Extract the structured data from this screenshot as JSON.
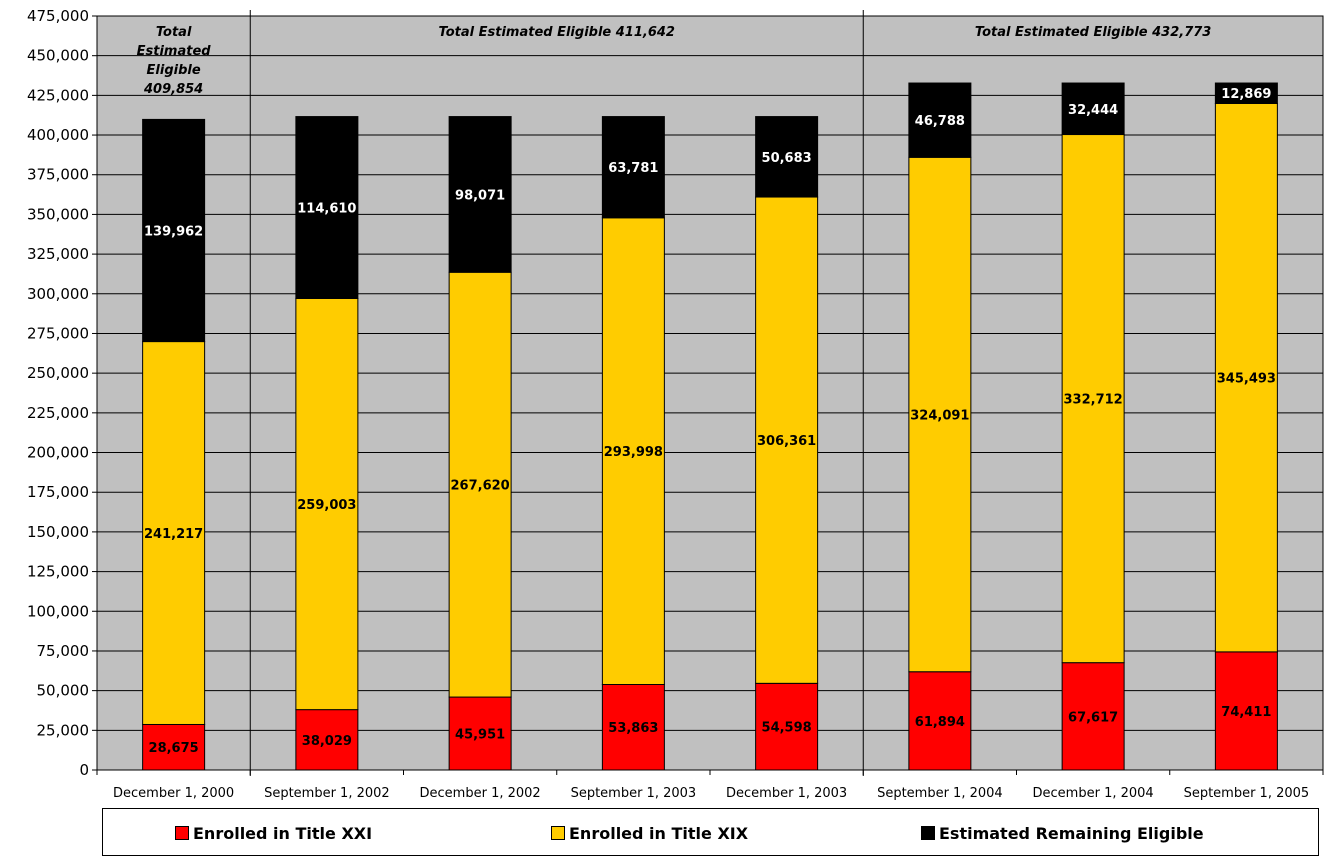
{
  "chart_data": {
    "type": "bar",
    "stacked": true,
    "categories": [
      "December 1, 2000",
      "September 1, 2002",
      "December 1, 2002",
      "September 1, 2003",
      "December 1, 2003",
      "September 1, 2004",
      "December 1, 2004",
      "September 1, 2005"
    ],
    "series": [
      {
        "name": "Enrolled in Title XXI",
        "color": "#ff0000",
        "label_color": "#000000",
        "values": [
          28675,
          38029,
          45951,
          53863,
          54598,
          61894,
          67617,
          74411
        ]
      },
      {
        "name": "Enrolled in Title XIX",
        "color": "#ffcc00",
        "label_color": "#000000",
        "values": [
          241217,
          259003,
          267620,
          293998,
          306361,
          324091,
          332712,
          345493
        ]
      },
      {
        "name": "Estimated Remaining Eligible",
        "color": "#000000",
        "label_color": "#ffffff",
        "values": [
          139962,
          114610,
          98071,
          63781,
          50683,
          46788,
          32444,
          12869
        ]
      }
    ],
    "data_labels": [
      [
        "28,675",
        "38,029",
        "45,951",
        "53,863",
        "54,598",
        "61,894",
        "67,617",
        "74,411"
      ],
      [
        "241,217",
        "259,003",
        "267,620",
        "293,998",
        "306,361",
        "324,091",
        "332,712",
        "345,493"
      ],
      [
        "139,962",
        "114,610",
        "98,071",
        "63,781",
        "50,683",
        "46,788",
        "32,444",
        "12,869"
      ]
    ],
    "ylim": [
      0,
      475000
    ],
    "ytick_step": 25000,
    "ytick_labels": [
      "0",
      "25,000",
      "50,000",
      "75,000",
      "100,000",
      "125,000",
      "150,000",
      "175,000",
      "200,000",
      "225,000",
      "250,000",
      "275,000",
      "300,000",
      "325,000",
      "350,000",
      "375,000",
      "400,000",
      "425,000",
      "450,000",
      "475,000"
    ],
    "grid": true,
    "plot_background": "#c0c0c0",
    "legend_position": "bottom",
    "group_annotations": [
      {
        "lines": [
          "Total",
          "Estimated",
          "Eligible",
          "409,854"
        ],
        "categories": [
          0
        ]
      },
      {
        "lines": [
          "Total  Estimated Eligible  411,642"
        ],
        "categories": [
          1,
          2,
          3,
          4
        ]
      },
      {
        "lines": [
          "Total  Estimated Eligible  432,773"
        ],
        "categories": [
          5,
          6,
          7
        ]
      }
    ]
  }
}
